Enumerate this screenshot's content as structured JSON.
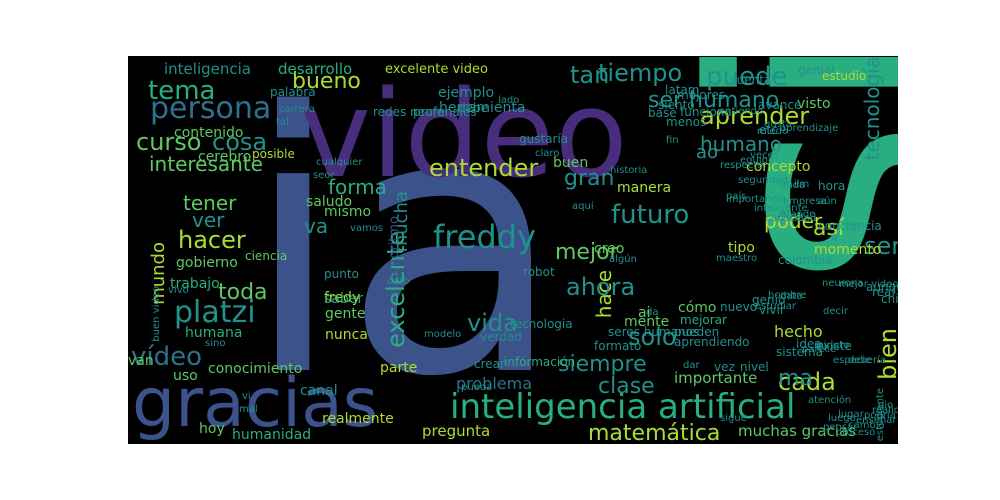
{
  "palette": {
    "background": "#000000",
    "purple": "#472d7b",
    "violet": "#3b528b",
    "blue": "#2c728e",
    "teal": "#21918c",
    "green": "#28ae80",
    "lime": "#5ec962",
    "yellow": "#addc30"
  },
  "words": [
    {
      "text": "ia"
    },
    {
      "text": "si"
    },
    {
      "text": "video"
    },
    {
      "text": "gracias"
    },
    {
      "text": "inteligencia artificial"
    },
    {
      "text": "freddy"
    },
    {
      "text": "platzi"
    },
    {
      "text": "persona"
    },
    {
      "text": "tema"
    },
    {
      "text": "hacer"
    },
    {
      "text": "puede"
    },
    {
      "text": "tiempo"
    },
    {
      "text": "tan"
    },
    {
      "text": "humano"
    },
    {
      "text": "aprender"
    },
    {
      "text": "ser"
    },
    {
      "text": "tecnología"
    },
    {
      "text": "entender"
    },
    {
      "text": "interesante"
    },
    {
      "text": "curso"
    },
    {
      "text": "cosa"
    },
    {
      "text": "bueno"
    },
    {
      "text": "ser humano"
    },
    {
      "text": "futuro"
    },
    {
      "text": "gran"
    },
    {
      "text": "mejor"
    },
    {
      "text": "vida"
    },
    {
      "text": "excelente"
    },
    {
      "text": "hace"
    },
    {
      "text": "solo"
    },
    {
      "text": "ahora"
    },
    {
      "text": "siempre"
    },
    {
      "text": "clase"
    },
    {
      "text": "cada"
    },
    {
      "text": "matemática"
    },
    {
      "text": "bien"
    },
    {
      "text": "poder"
    },
    {
      "text": "así"
    },
    {
      "text": "forma"
    },
    {
      "text": "mucha"
    },
    {
      "text": "vídeo"
    },
    {
      "text": "mundo"
    },
    {
      "text": "toda"
    },
    {
      "text": "tener"
    },
    {
      "text": "ver"
    },
    {
      "text": "va"
    },
    {
      "text": "inteligencia"
    },
    {
      "text": "desarrollo"
    },
    {
      "text": "excelente video"
    },
    {
      "text": "muchas gracias"
    },
    {
      "text": "pregunta"
    },
    {
      "text": "problema"
    },
    {
      "text": "humanidad"
    },
    {
      "text": "algoritmo"
    },
    {
      "text": "importante"
    },
    {
      "text": "hecho"
    },
    {
      "text": "momento"
    },
    {
      "text": "concepto"
    },
    {
      "text": "manera"
    },
    {
      "text": "tipo"
    },
    {
      "text": "mismo"
    },
    {
      "text": "saludo"
    },
    {
      "text": "cerebro"
    },
    {
      "text": "contenido"
    },
    {
      "text": "humana"
    },
    {
      "text": "gobierno"
    },
    {
      "text": "trabajo"
    },
    {
      "text": "fredy"
    },
    {
      "text": "saber"
    },
    {
      "text": "nunca"
    },
    {
      "text": "parte"
    },
    {
      "text": "conocimiento"
    },
    {
      "text": "uso"
    },
    {
      "text": "van"
    },
    {
      "text": "canal"
    },
    {
      "text": "hoy"
    },
    {
      "text": "realmente"
    },
    {
      "text": "ao"
    },
    {
      "text": "ma"
    },
    {
      "text": "creo"
    },
    {
      "text": "cómo"
    },
    {
      "text": "ai"
    },
    {
      "text": "mente"
    },
    {
      "text": "buen"
    },
    {
      "text": "visto"
    },
    {
      "text": "gente"
    },
    {
      "text": "ejemplo"
    },
    {
      "text": "herramienta"
    },
    {
      "text": "redes neuronales"
    },
    {
      "text": "palabra"
    },
    {
      "text": "profe"
    },
    {
      "text": "debe"
    },
    {
      "text": "posible"
    },
    {
      "text": "ciencia"
    },
    {
      "text": "punto"
    },
    {
      "text": "información"
    },
    {
      "text": "robot"
    },
    {
      "text": "base"
    },
    {
      "text": "genial"
    },
    {
      "text": "estudio"
    },
    {
      "text": "avance"
    },
    {
      "text": "etc"
    },
    {
      "text": "buena"
    },
    {
      "text": "mejorar"
    },
    {
      "text": "sistema"
    },
    {
      "text": "idea"
    },
    {
      "text": "existe"
    },
    {
      "text": "nivel"
    },
    {
      "text": "vez"
    },
    {
      "text": "verdad"
    },
    {
      "text": "crear"
    },
    {
      "text": "dice"
    },
    {
      "text": "conciencia"
    },
    {
      "text": "aunque"
    },
    {
      "text": "real"
    },
    {
      "text": "chip"
    },
    {
      "text": "hora"
    },
    {
      "text": "colombia"
    },
    {
      "text": "genio"
    },
    {
      "text": "vivir"
    },
    {
      "text": "nuevo"
    },
    {
      "text": "formato"
    },
    {
      "text": "pueden"
    },
    {
      "text": "aprendiendo"
    },
    {
      "text": "seres humanos"
    },
    {
      "text": "tecnologia"
    },
    {
      "text": "gustaría"
    },
    {
      "text": "buen video"
    },
    {
      "text": "siento"
    },
    {
      "text": "latam"
    },
    {
      "text": "cuenta"
    },
    {
      "text": "mejores"
    },
    {
      "text": "menos"
    },
    {
      "text": "funciona"
    },
    {
      "text": "aprendizaje"
    },
    {
      "text": "gusta"
    },
    {
      "text": "entiendo"
    },
    {
      "text": "fin"
    },
    {
      "text": "veces"
    },
    {
      "text": "equipo"
    },
    {
      "text": "respecto"
    },
    {
      "text": "historia"
    },
    {
      "text": "duda"
    },
    {
      "text": "país"
    },
    {
      "text": "inteligente"
    },
    {
      "text": "maestro"
    },
    {
      "text": "seguridad"
    },
    {
      "text": "empresa"
    },
    {
      "text": "neurona"
    },
    {
      "text": "decir"
    },
    {
      "text": "importancia"
    },
    {
      "text": "aún"
    },
    {
      "text": "grande"
    },
    {
      "text": "capacidad"
    },
    {
      "text": "hombre"
    },
    {
      "text": "data"
    },
    {
      "text": "estudiar"
    },
    {
      "text": "mejor video"
    },
    {
      "text": "parece"
    },
    {
      "text": "atención"
    },
    {
      "text": "minuto"
    },
    {
      "text": "debería"
    },
    {
      "text": "estudiante"
    },
    {
      "text": "especie"
    },
    {
      "text": "lugar"
    },
    {
      "text": "luego"
    },
    {
      "text": "pensar"
    },
    {
      "text": "proceso"
    },
    {
      "text": "cambio"
    },
    {
      "text": "enseñar"
    },
    {
      "text": "podría"
    },
    {
      "text": "realidad"
    },
    {
      "text": "dio"
    },
    {
      "text": "mal"
    },
    {
      "text": "tal"
    },
    {
      "text": "seor"
    },
    {
      "text": "vamos"
    },
    {
      "text": "dato"
    },
    {
      "text": "modelo"
    },
    {
      "text": "pueda"
    },
    {
      "text": "lado"
    },
    {
      "text": "claro"
    },
    {
      "text": "aquí"
    },
    {
      "text": "algún"
    },
    {
      "text": "da"
    },
    {
      "text": "dar"
    },
    {
      "text": "sigue"
    },
    {
      "text": "miedo"
    },
    {
      "text": "ilm"
    },
    {
      "text": "q"
    },
    {
      "text": "vivo"
    },
    {
      "text": "sino"
    },
    {
      "text": "vi"
    },
    {
      "text": "carrera"
    },
    {
      "text": "cualquier"
    },
    {
      "text": "demasiado"
    }
  ]
}
